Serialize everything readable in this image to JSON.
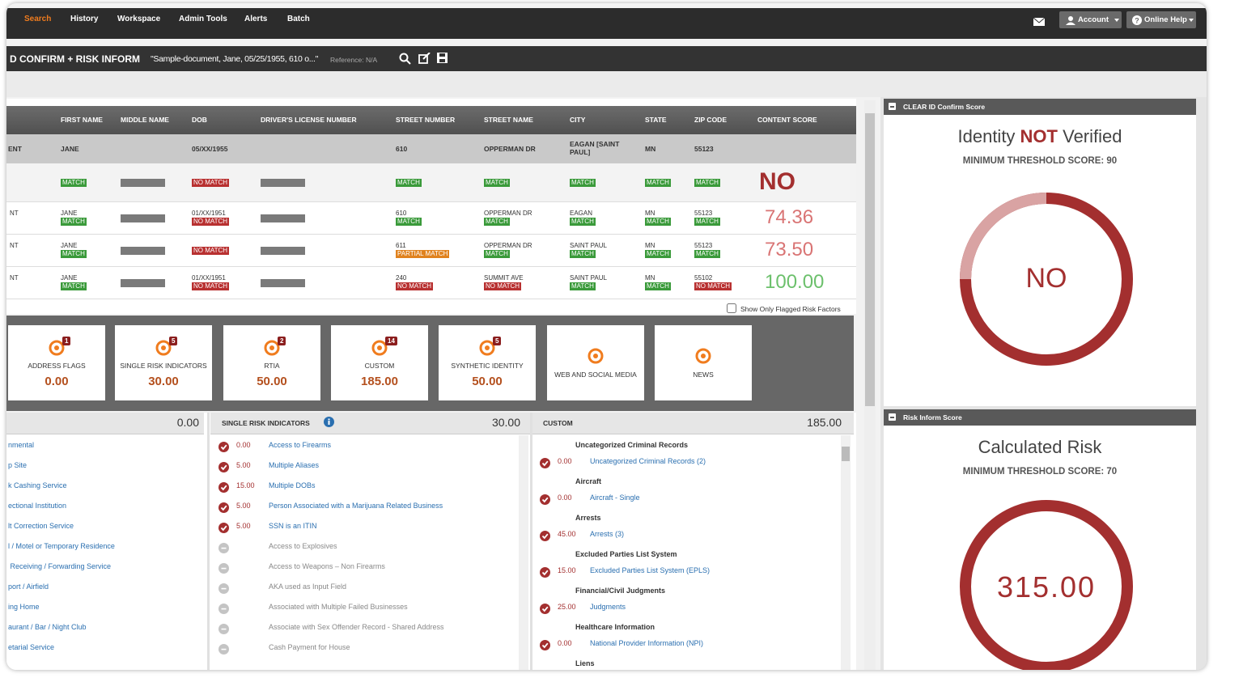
{
  "nav": {
    "items": [
      "Search",
      "History",
      "Workspace",
      "Admin Tools",
      "Alerts",
      "Batch"
    ],
    "account": "Account",
    "help": "Online Help"
  },
  "toolbar": {
    "title": "D CONFIRM + RISK INFORM",
    "document": "\"Sample-document, Jane, 05/25/1955, 610 o...\"",
    "reference": "Reference: N/A"
  },
  "table": {
    "headers": [
      "FIRST NAME",
      "MIDDLE NAME",
      "DOB",
      "DRIVER'S LICENSE NUMBER",
      "STREET NUMBER",
      "STREET NAME",
      "CITY",
      "STATE",
      "ZIP CODE",
      "CONTENT SCORE"
    ],
    "input_row": {
      "label": "ENT",
      "cells": [
        "JANE",
        null,
        "05/XX/1955",
        null,
        "610",
        "OPPERMAN DR",
        "EAGAN [SAINT PAUL]",
        "MN",
        "55123"
      ]
    },
    "summary_row": {
      "cells": [
        {
          "badge": "MATCH",
          "color": "#3a9a3a"
        },
        null,
        {
          "badge": "NO MATCH",
          "color": "#b83030"
        },
        null,
        {
          "badge": "MATCH",
          "color": "#3a9a3a"
        },
        {
          "badge": "MATCH",
          "color": "#3a9a3a"
        },
        {
          "badge": "MATCH",
          "color": "#3a9a3a"
        },
        {
          "badge": "MATCH",
          "color": "#3a9a3a"
        },
        {
          "badge": "MATCH",
          "color": "#3a9a3a"
        }
      ],
      "score": "NO",
      "score_color": "#a32f2f"
    },
    "rows": [
      {
        "label": "NT",
        "cells": [
          {
            "text": "JANE",
            "badge": "MATCH",
            "color": "#3a9a3a"
          },
          null,
          {
            "text": "01/XX/1951",
            "badge": "NO MATCH",
            "color": "#b83030"
          },
          null,
          {
            "text": "610",
            "badge": "MATCH",
            "color": "#3a9a3a"
          },
          {
            "text": "OPPERMAN DR",
            "badge": "MATCH",
            "color": "#3a9a3a"
          },
          {
            "text": "EAGAN",
            "badge": "MATCH",
            "color": "#3a9a3a"
          },
          {
            "text": "MN",
            "badge": "MATCH",
            "color": "#3a9a3a"
          },
          {
            "text": "55123",
            "badge": "MATCH",
            "color": "#3a9a3a"
          }
        ],
        "score": "74.36",
        "score_color": "#d97474"
      },
      {
        "label": "NT",
        "cells": [
          {
            "text": "JANE",
            "badge": "MATCH",
            "color": "#3a9a3a"
          },
          null,
          {
            "badge": "NO MATCH",
            "color": "#b83030"
          },
          null,
          {
            "text": "611",
            "badge": "PARTIAL MATCH",
            "color": "#e0821e"
          },
          {
            "text": "OPPERMAN DR",
            "badge": "MATCH",
            "color": "#3a9a3a"
          },
          {
            "text": "SAINT PAUL",
            "badge": "MATCH",
            "color": "#3a9a3a"
          },
          {
            "text": "MN",
            "badge": "MATCH",
            "color": "#3a9a3a"
          },
          {
            "text": "55123",
            "badge": "MATCH",
            "color": "#3a9a3a"
          }
        ],
        "score": "73.50",
        "score_color": "#d97474"
      },
      {
        "label": "NT",
        "cells": [
          {
            "text": "JANE",
            "badge": "MATCH",
            "color": "#3a9a3a"
          },
          null,
          {
            "text": "01/XX/1951",
            "badge": "NO MATCH",
            "color": "#b83030"
          },
          null,
          {
            "text": "240",
            "badge": "NO MATCH",
            "color": "#b83030"
          },
          {
            "text": "SUMMIT AVE",
            "badge": "NO MATCH",
            "color": "#b83030"
          },
          {
            "text": "SAINT PAUL",
            "badge": "MATCH",
            "color": "#3a9a3a"
          },
          {
            "text": "MN",
            "badge": "MATCH",
            "color": "#3a9a3a"
          },
          {
            "text": "55102",
            "badge": "NO MATCH",
            "color": "#b83030"
          }
        ],
        "score": "100.00",
        "score_color": "#6cc06c"
      }
    ],
    "filter_label": "Show Only Flagged Risk Factors"
  },
  "cards": [
    {
      "title": "ADDRESS FLAGS",
      "count": "1",
      "score": "0.00"
    },
    {
      "title": "SINGLE RISK INDICATORS",
      "count": "5",
      "score": "30.00"
    },
    {
      "title": "RTIA",
      "count": "2",
      "score": "50.00"
    },
    {
      "title": "CUSTOM",
      "count": "14",
      "score": "185.00"
    },
    {
      "title": "SYNTHETIC IDENTITY",
      "count": "5",
      "score": "50.00"
    },
    {
      "title": "WEB AND SOCIAL MEDIA"
    },
    {
      "title": "NEWS"
    }
  ],
  "address_panel": {
    "total": "0.00",
    "items": [
      "nmental",
      "p Site",
      "k Cashing Service",
      "ectional Institution",
      "lt Correction Service",
      "l / Motel or Temporary Residence",
      " Receiving / Forwarding Service",
      "port / Airfield",
      "ing Home",
      "aurant / Bar / Night Club",
      "etarial Service"
    ]
  },
  "single_panel": {
    "title": "SINGLE RISK INDICATORS",
    "total": "30.00",
    "items": [
      {
        "score": "0.00",
        "label": "Access to Firearms"
      },
      {
        "score": "5.00",
        "label": "Multiple Aliases"
      },
      {
        "score": "15.00",
        "label": "Multiple DOBs"
      },
      {
        "score": "5.00",
        "label": "Person Associated with a Marijuana Related Business"
      },
      {
        "score": "5.00",
        "label": "SSN is an ITIN"
      },
      {
        "label": "Access to Explosives"
      },
      {
        "label": "Access to Weapons – Non Firearms"
      },
      {
        "label": "AKA used as Input Field"
      },
      {
        "label": "Associated with Multiple Failed Businesses"
      },
      {
        "label": "Associate with Sex Offender Record - Shared Address"
      },
      {
        "label": "Cash Payment for House"
      }
    ]
  },
  "custom_panel": {
    "title": "CUSTOM",
    "total": "185.00",
    "groups": [
      {
        "heading": "Uncategorized Criminal Records",
        "score": "0.00",
        "label": "Uncategorized Criminal Records (2)"
      },
      {
        "heading": "Aircraft",
        "score": "0.00",
        "label": "Aircraft - Single"
      },
      {
        "heading": "Arrests",
        "score": "45.00",
        "label": "Arrests (3)"
      },
      {
        "heading": "Excluded Parties List System",
        "score": "15.00",
        "label": "Excluded Parties List System (EPLS)"
      },
      {
        "heading": "Financial/Civil Judgments",
        "score": "25.00",
        "label": "Judgments"
      },
      {
        "heading": "Healthcare Information",
        "score": "0.00",
        "label": "National Provider Information (NPI)"
      },
      {
        "heading": "Liens"
      }
    ]
  },
  "scores": [
    {
      "header": "CLEAR ID Confirm Score",
      "title": [
        "Identity ",
        "NOT",
        " Verified"
      ],
      "threshold": "MINIMUM THRESHOLD SCORE: 90",
      "result": "NO"
    },
    {
      "header": "Risk Inform Score",
      "title": [
        "Calculated Risk"
      ],
      "threshold": "MINIMUM THRESHOLD SCORE: 70",
      "result": "315.00"
    }
  ]
}
